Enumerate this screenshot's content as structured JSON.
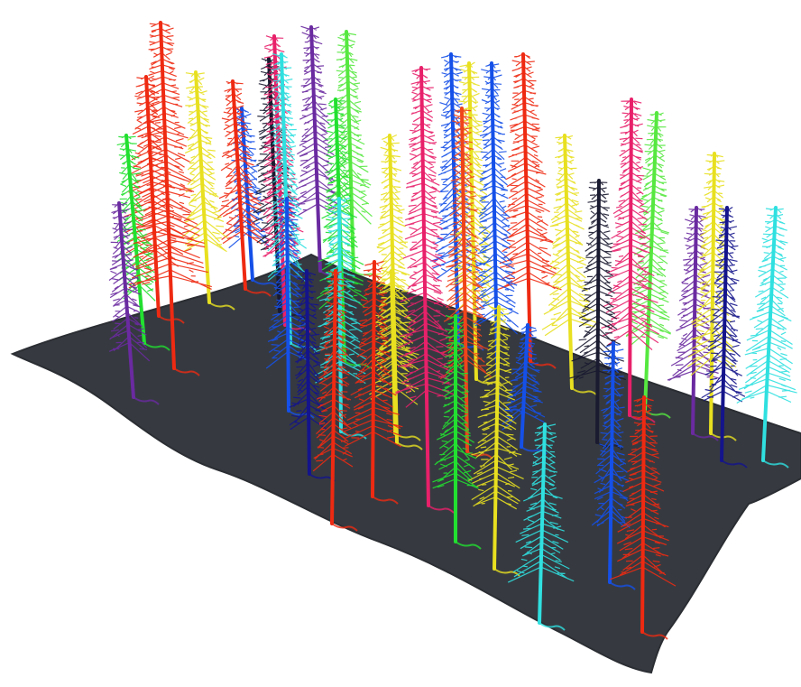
{
  "scene": {
    "ground_color": "#363a40",
    "ground_edge_color": "#2b2e33",
    "background_color": "#ffffff"
  },
  "palette": {
    "red": "#ee2a12",
    "orange_red": "#f0441a",
    "yellow": "#e8e020",
    "green": "#22e030",
    "lime": "#56e840",
    "cyan": "#30e0e0",
    "blue": "#1550e8",
    "navy": "#14148c",
    "purple": "#6a2aa0",
    "magenta": "#e8206a",
    "dark": "#1a1a30"
  },
  "trees": [
    {
      "color": "purple"
    },
    {
      "color": "green"
    },
    {
      "color": "red"
    },
    {
      "color": "red"
    },
    {
      "color": "yellow"
    },
    {
      "color": "red"
    },
    {
      "color": "blue"
    },
    {
      "color": "dark"
    },
    {
      "color": "magenta"
    },
    {
      "color": "cyan"
    },
    {
      "color": "purple"
    },
    {
      "color": "green"
    },
    {
      "color": "lime"
    },
    {
      "color": "yellow"
    },
    {
      "color": "magenta"
    },
    {
      "color": "blue"
    },
    {
      "color": "yellow"
    },
    {
      "color": "blue"
    },
    {
      "color": "orange_red"
    },
    {
      "color": "red"
    },
    {
      "color": "yellow"
    },
    {
      "color": "dark"
    },
    {
      "color": "magenta"
    },
    {
      "color": "lime"
    },
    {
      "color": "purple"
    },
    {
      "color": "yellow"
    },
    {
      "color": "navy"
    },
    {
      "color": "cyan"
    },
    {
      "color": "blue"
    },
    {
      "color": "cyan"
    },
    {
      "color": "red"
    },
    {
      "color": "yellow"
    },
    {
      "color": "navy"
    },
    {
      "color": "green"
    },
    {
      "color": "yellow"
    },
    {
      "color": "blue"
    },
    {
      "color": "cyan"
    },
    {
      "color": "blue"
    },
    {
      "color": "red"
    },
    {
      "color": "red"
    }
  ]
}
